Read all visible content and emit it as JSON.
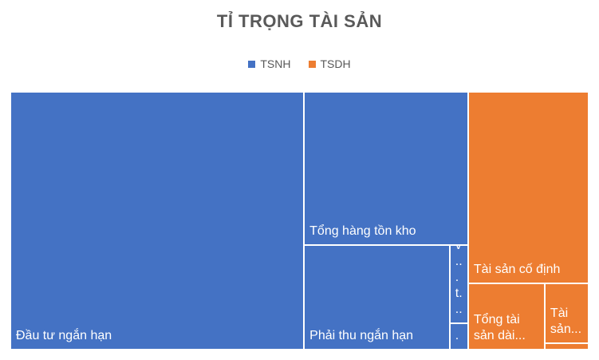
{
  "chart_data": {
    "type": "treemap",
    "title": "TỈ TRỌNG TÀI SẢN",
    "series": [
      {
        "name": "TSNH",
        "color": "#4472c4",
        "categories": [
          "Đầu tư ngắn hạn",
          "Tổng hàng tồn kho",
          "Phải thu ngắn hạn",
          "T... v... t...",
          "T..."
        ],
        "values": [
          50.8,
          16.9,
          10.2,
          0.96,
          0.33
        ]
      },
      {
        "name": "TSDH",
        "color": "#ed7d31",
        "categories": [
          "Tài sản cố định",
          "Tổng tài sản dài...",
          "Tài sản...",
          null
        ],
        "values": [
          15.5,
          3.4,
          1.76,
          0.19
        ]
      }
    ]
  }
}
